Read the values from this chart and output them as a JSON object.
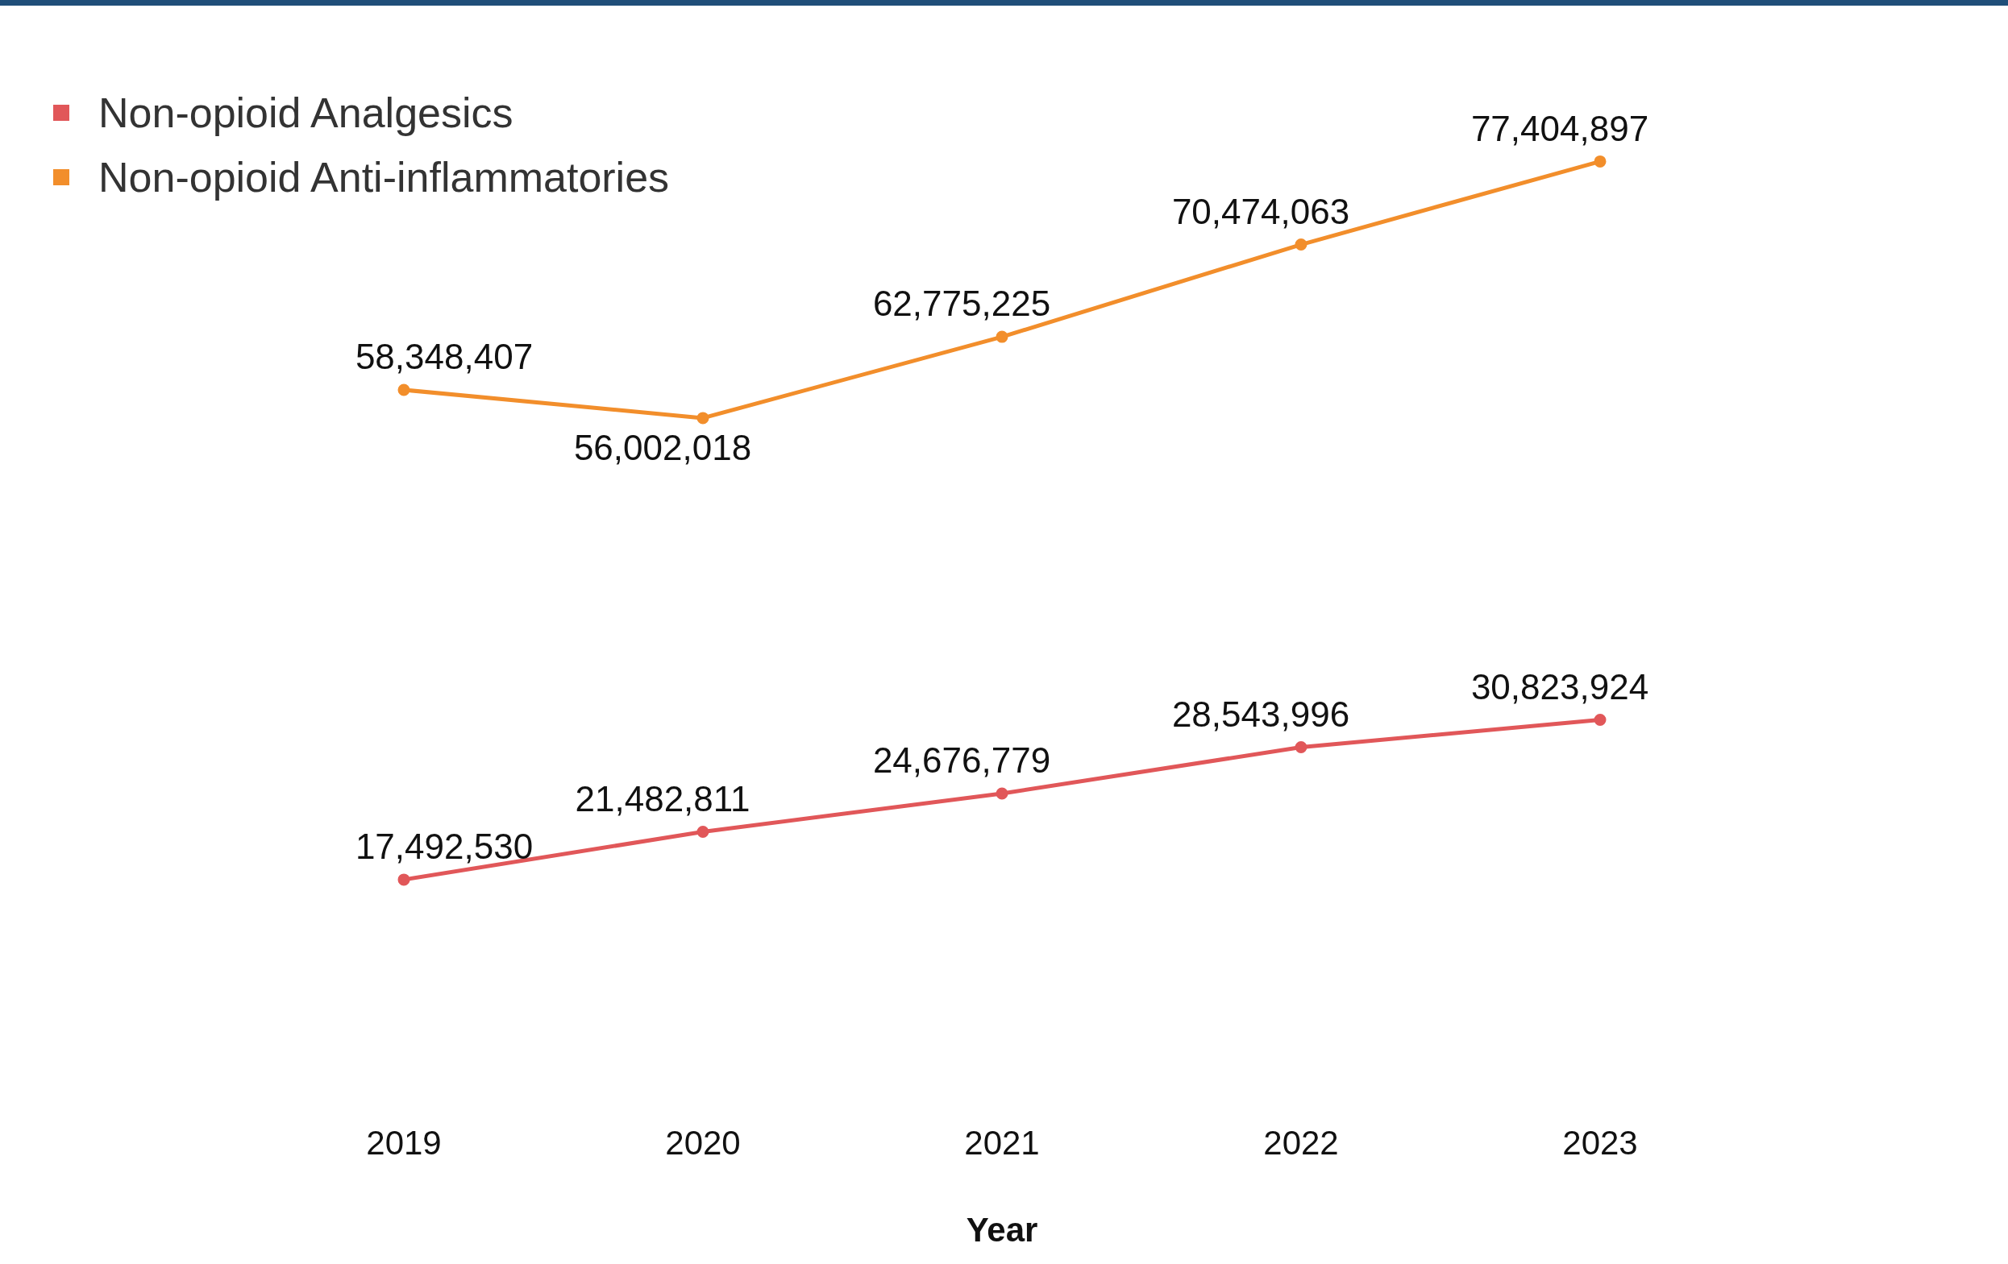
{
  "chart_data": {
    "type": "line",
    "xlabel": "Year",
    "categories": [
      "2019",
      "2020",
      "2021",
      "2022",
      "2023"
    ],
    "series": [
      {
        "name": "Non-opioid Analgesics",
        "color": "#e15759",
        "values": [
          17492530,
          21482811,
          24676779,
          28543996,
          30823924
        ],
        "value_labels": [
          "17,492,530",
          "21,482,811",
          "24,676,779",
          "28,543,996",
          "30,823,924"
        ]
      },
      {
        "name": "Non-opioid Anti-inflammatories",
        "color": "#f28e2b",
        "values": [
          58348407,
          56002018,
          62775225,
          70474063,
          77404897
        ],
        "value_labels": [
          "58,348,407",
          "56,002,018",
          "62,775,225",
          "70,474,063",
          "77,404,897"
        ]
      }
    ],
    "tick_labels": "x",
    "legend": "top left",
    "marker": "circle",
    "grid": false
  }
}
